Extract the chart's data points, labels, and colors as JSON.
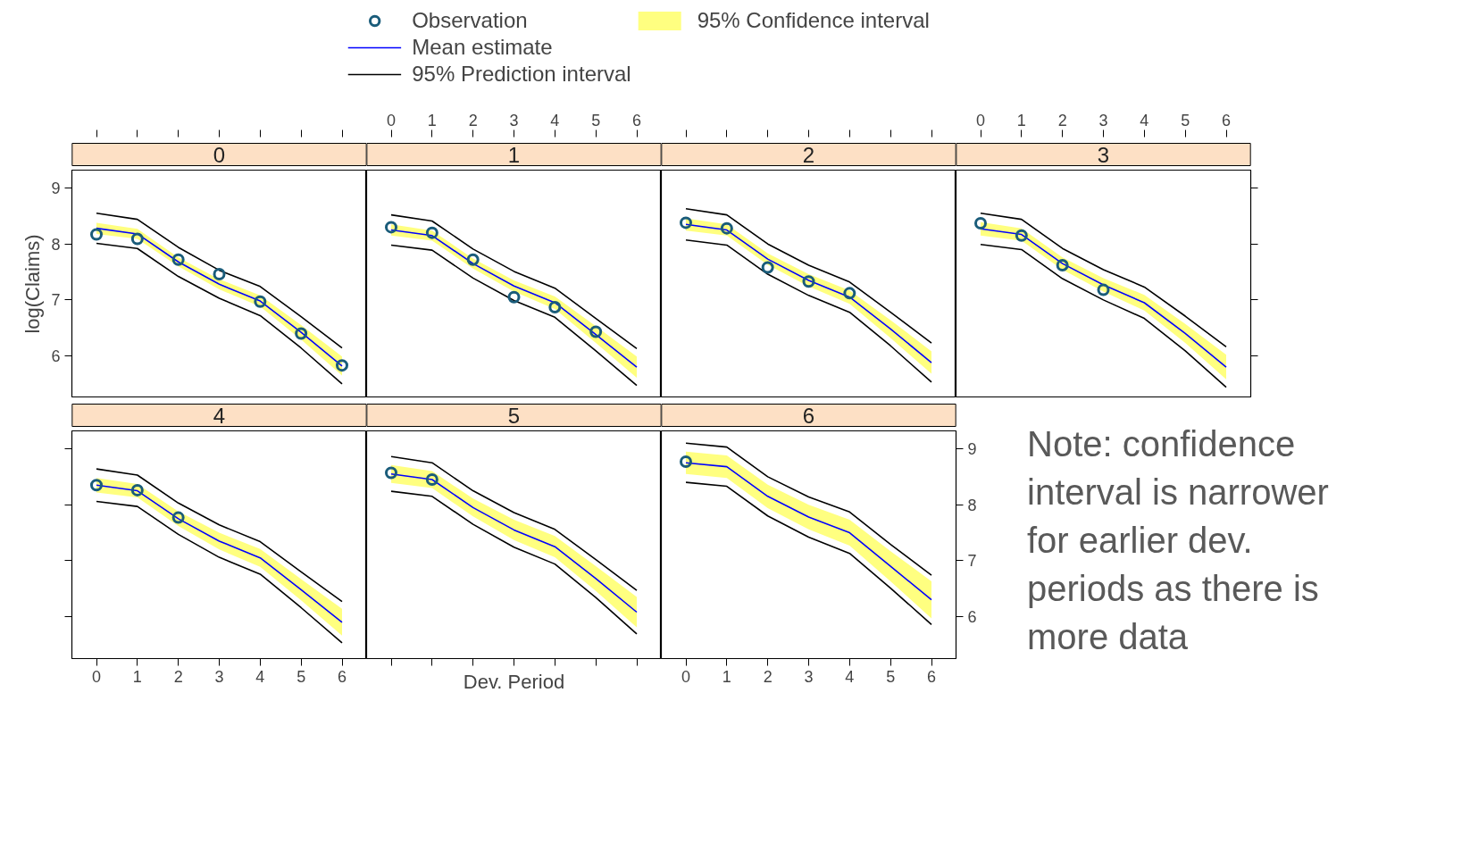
{
  "chart_data": [
    {
      "type": "line",
      "title": "0",
      "ylabel": "log(Claims)",
      "x": [
        0,
        1,
        2,
        3,
        4,
        5,
        6
      ],
      "xlim": [
        -0.6,
        6.6
      ],
      "ylim": [
        5.25,
        9.32
      ],
      "xticks": [
        0,
        1,
        2,
        3,
        4,
        5,
        6
      ],
      "yticks": [
        6,
        7,
        8,
        9
      ],
      "tick_labels": "y",
      "legend": "top",
      "series": [
        {
          "name": "Observation",
          "type": "scatter",
          "marker": "circle",
          "color": "#1a5c7a",
          "values": [
            8.17,
            8.09,
            7.72,
            7.46,
            6.97,
            6.4,
            5.83
          ]
        },
        {
          "name": "Mean estimate",
          "color": "#0000ff",
          "values": [
            8.28,
            8.18,
            7.68,
            7.28,
            6.98,
            6.42,
            5.82
          ],
          "lower": [
            8.18,
            8.09,
            7.6,
            7.19,
            6.88,
            6.29,
            5.65
          ],
          "upper": [
            8.38,
            8.27,
            7.76,
            7.37,
            7.08,
            6.55,
            5.99
          ]
        },
        {
          "name": "95% Prediction interval",
          "color": "#000000",
          "values": [
            8.55,
            8.44,
            7.94,
            7.53,
            7.24,
            6.7,
            6.14
          ]
        },
        {
          "color": "#000000",
          "values": [
            8.01,
            7.92,
            7.42,
            7.03,
            6.72,
            6.14,
            5.5
          ]
        },
        {
          "name": "95% Confidence interval",
          "type": "area",
          "color": "#ffff80",
          "values": [
            null,
            null,
            null,
            null,
            null,
            null,
            null
          ]
        }
      ]
    },
    {
      "type": "line",
      "title": "1",
      "x": [
        0,
        1,
        2,
        3,
        4,
        5,
        6
      ],
      "xlim": [
        -0.6,
        6.6
      ],
      "ylim": [
        5.25,
        9.32
      ],
      "xticks": [
        0,
        1,
        2,
        3,
        4,
        5,
        6
      ],
      "tick_labels": "x",
      "series": [
        {
          "type": "scatter",
          "marker": "circle",
          "color": "#1a5c7a",
          "values": [
            8.3,
            8.2,
            7.72,
            7.05,
            6.87,
            6.43,
            null
          ]
        },
        {
          "color": "#0000ff",
          "values": [
            8.25,
            8.15,
            7.65,
            7.25,
            6.95,
            6.38,
            5.8
          ],
          "lower": [
            8.15,
            8.06,
            7.56,
            7.15,
            6.84,
            6.23,
            5.61
          ],
          "upper": [
            8.35,
            8.24,
            7.74,
            7.35,
            7.06,
            6.53,
            5.99
          ]
        },
        {
          "color": "#000000",
          "values": [
            8.52,
            8.41,
            7.91,
            7.51,
            7.21,
            6.67,
            6.13
          ]
        },
        {
          "color": "#000000",
          "values": [
            7.98,
            7.89,
            7.39,
            6.99,
            6.69,
            6.09,
            5.47
          ]
        },
        {
          "type": "area",
          "color": "#ffff80",
          "values": [
            null,
            null,
            null,
            null,
            null,
            null,
            null
          ]
        }
      ]
    },
    {
      "type": "line",
      "title": "2",
      "x": [
        0,
        1,
        2,
        3,
        4,
        5,
        6
      ],
      "xlim": [
        -0.6,
        6.6
      ],
      "ylim": [
        5.25,
        9.32
      ],
      "xticks": [
        0,
        1,
        2,
        3,
        4,
        5,
        6
      ],
      "tick_labels": false,
      "series": [
        {
          "type": "scatter",
          "marker": "circle",
          "color": "#1a5c7a",
          "values": [
            8.38,
            8.28,
            7.58,
            7.33,
            7.12,
            null,
            null
          ]
        },
        {
          "color": "#0000ff",
          "values": [
            8.35,
            8.25,
            7.73,
            7.35,
            7.05,
            6.48,
            5.88
          ],
          "lower": [
            8.24,
            8.15,
            7.63,
            7.24,
            6.93,
            6.32,
            5.68
          ],
          "upper": [
            8.46,
            8.35,
            7.83,
            7.46,
            7.17,
            6.64,
            6.08
          ]
        },
        {
          "color": "#000000",
          "values": [
            8.63,
            8.52,
            8.0,
            7.62,
            7.32,
            6.78,
            6.23
          ]
        },
        {
          "color": "#000000",
          "values": [
            8.07,
            7.98,
            7.46,
            7.08,
            6.78,
            6.18,
            5.53
          ]
        },
        {
          "type": "area",
          "color": "#ffff80",
          "values": [
            null,
            null,
            null,
            null,
            null,
            null,
            null
          ]
        }
      ]
    },
    {
      "type": "line",
      "title": "3",
      "x": [
        0,
        1,
        2,
        3,
        4,
        5,
        6
      ],
      "xlim": [
        -0.6,
        6.6
      ],
      "ylim": [
        5.25,
        9.32
      ],
      "xticks": [
        0,
        1,
        2,
        3,
        4,
        5,
        6
      ],
      "yticks": [
        6,
        7,
        8,
        9
      ],
      "tick_labels": "x",
      "series": [
        {
          "type": "scatter",
          "marker": "circle",
          "color": "#1a5c7a",
          "values": [
            8.37,
            8.15,
            7.62,
            7.18,
            null,
            null,
            null
          ]
        },
        {
          "color": "#0000ff",
          "values": [
            8.27,
            8.17,
            7.65,
            7.27,
            6.95,
            6.4,
            5.8
          ],
          "lower": [
            8.15,
            8.06,
            7.54,
            7.15,
            6.81,
            6.23,
            5.58
          ],
          "upper": [
            8.39,
            8.28,
            7.76,
            7.39,
            7.09,
            6.57,
            6.02
          ]
        },
        {
          "color": "#000000",
          "values": [
            8.55,
            8.44,
            7.92,
            7.54,
            7.23,
            6.71,
            6.16
          ]
        },
        {
          "color": "#000000",
          "values": [
            7.99,
            7.9,
            7.38,
            7.0,
            6.67,
            6.09,
            5.44
          ]
        },
        {
          "type": "area",
          "color": "#ffff80",
          "values": [
            null,
            null,
            null,
            null,
            null,
            null,
            null
          ]
        }
      ]
    },
    {
      "type": "line",
      "title": "4",
      "x": [
        0,
        1,
        2,
        3,
        4,
        5,
        6
      ],
      "xlim": [
        -0.6,
        6.6
      ],
      "ylim": [
        5.25,
        9.32
      ],
      "xticks": [
        0,
        1,
        2,
        3,
        4,
        5,
        6
      ],
      "yticks": [
        6,
        7,
        8,
        9
      ],
      "tick_labels": "x",
      "series": [
        {
          "type": "scatter",
          "marker": "circle",
          "color": "#1a5c7a",
          "values": [
            8.35,
            8.26,
            7.77,
            null,
            null,
            null,
            null
          ]
        },
        {
          "color": "#0000ff",
          "values": [
            8.35,
            8.25,
            7.75,
            7.35,
            7.05,
            6.48,
            5.9
          ],
          "lower": [
            8.22,
            8.13,
            7.62,
            7.2,
            6.89,
            6.29,
            5.66
          ],
          "upper": [
            8.48,
            8.37,
            7.88,
            7.5,
            7.21,
            6.67,
            6.14
          ]
        },
        {
          "color": "#000000",
          "values": [
            8.64,
            8.53,
            8.03,
            7.64,
            7.34,
            6.8,
            6.27
          ]
        },
        {
          "color": "#000000",
          "values": [
            8.06,
            7.97,
            7.47,
            7.06,
            6.76,
            6.16,
            5.53
          ]
        },
        {
          "type": "area",
          "color": "#ffff80",
          "values": [
            null,
            null,
            null,
            null,
            null,
            null,
            null
          ]
        }
      ]
    },
    {
      "type": "line",
      "title": "5",
      "xlabel": "Dev. Period",
      "x": [
        0,
        1,
        2,
        3,
        4,
        5,
        6
      ],
      "xlim": [
        -0.6,
        6.6
      ],
      "ylim": [
        5.25,
        9.32
      ],
      "xticks": [
        0,
        1,
        2,
        3,
        4,
        5,
        6
      ],
      "tick_labels": false,
      "series": [
        {
          "type": "scatter",
          "marker": "circle",
          "color": "#1a5c7a",
          "values": [
            8.57,
            8.45,
            null,
            null,
            null,
            null,
            null
          ]
        },
        {
          "color": "#0000ff",
          "values": [
            8.55,
            8.45,
            7.95,
            7.55,
            7.25,
            6.68,
            6.08
          ],
          "lower": [
            8.39,
            8.3,
            7.79,
            7.37,
            7.06,
            6.46,
            5.81
          ],
          "upper": [
            8.71,
            8.6,
            8.11,
            7.73,
            7.44,
            6.9,
            6.35
          ]
        },
        {
          "color": "#000000",
          "values": [
            8.86,
            8.75,
            8.25,
            7.86,
            7.56,
            7.02,
            6.47
          ]
        },
        {
          "color": "#000000",
          "values": [
            8.24,
            8.15,
            7.65,
            7.24,
            6.94,
            6.34,
            5.69
          ]
        },
        {
          "type": "area",
          "color": "#ffff80",
          "values": [
            null,
            null,
            null,
            null,
            null,
            null,
            null
          ]
        }
      ]
    },
    {
      "type": "line",
      "title": "6",
      "x": [
        0,
        1,
        2,
        3,
        4,
        5,
        6
      ],
      "xlim": [
        -0.6,
        6.6
      ],
      "ylim": [
        5.25,
        9.32
      ],
      "xticks": [
        0,
        1,
        2,
        3,
        4,
        5,
        6
      ],
      "yticks": [
        6,
        7,
        8,
        9
      ],
      "annotations": [
        "Note: confidence interval is narrower for earlier dev. periods as there is more data"
      ],
      "series": [
        {
          "type": "scatter",
          "marker": "circle",
          "color": "#1a5c7a",
          "values": [
            8.77,
            null,
            null,
            null,
            null,
            null,
            null
          ]
        },
        {
          "color": "#0000ff",
          "values": [
            8.75,
            8.68,
            8.15,
            7.78,
            7.5,
            6.9,
            6.3
          ],
          "lower": [
            8.55,
            8.48,
            7.94,
            7.56,
            7.27,
            6.63,
            5.97
          ],
          "upper": [
            8.95,
            8.88,
            8.36,
            8.0,
            7.73,
            7.17,
            6.63
          ]
        },
        {
          "color": "#000000",
          "values": [
            9.1,
            9.03,
            8.5,
            8.14,
            7.87,
            7.29,
            6.74
          ]
        },
        {
          "color": "#000000",
          "values": [
            8.4,
            8.33,
            7.8,
            7.42,
            7.13,
            6.51,
            5.86
          ]
        },
        {
          "type": "area",
          "color": "#ffff80",
          "values": [
            null,
            null,
            null,
            null,
            null,
            null,
            null
          ]
        }
      ]
    }
  ]
}
